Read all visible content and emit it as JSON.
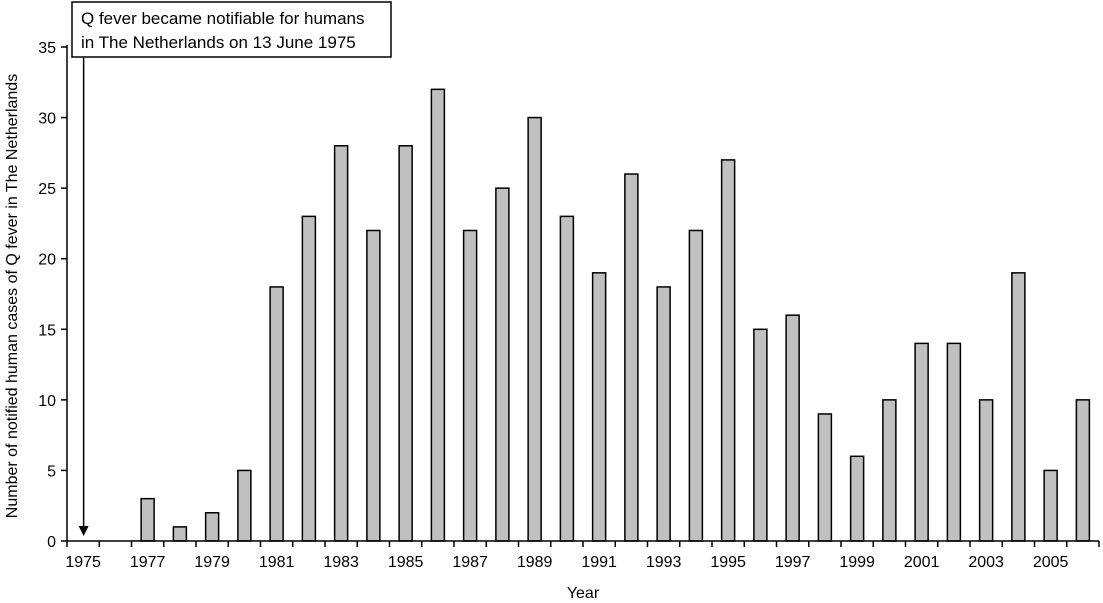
{
  "chart_data": {
    "type": "bar",
    "title": "",
    "xlabel": "Year",
    "ylabel": "Number of notified human cases of Q fever in The Netherlands",
    "ylim": [
      0,
      35
    ],
    "yticks": [
      0,
      5,
      10,
      15,
      20,
      25,
      30,
      35
    ],
    "grid": false,
    "categories": [
      "1975",
      "1976",
      "1977",
      "1978",
      "1979",
      "1980",
      "1981",
      "1982",
      "1983",
      "1984",
      "1985",
      "1986",
      "1987",
      "1988",
      "1989",
      "1990",
      "1991",
      "1992",
      "1993",
      "1994",
      "1995",
      "1996",
      "1997",
      "1998",
      "1999",
      "2000",
      "2001",
      "2002",
      "2003",
      "2004",
      "2005",
      "2006"
    ],
    "xtick_labels": [
      "1975",
      "1977",
      "1979",
      "1981",
      "1983",
      "1985",
      "1987",
      "1989",
      "1991",
      "1993",
      "1995",
      "1997",
      "1999",
      "2001",
      "2003",
      "2005"
    ],
    "values": [
      0,
      0,
      3,
      1,
      2,
      5,
      18,
      23,
      28,
      22,
      28,
      32,
      22,
      25,
      30,
      23,
      19,
      26,
      18,
      22,
      27,
      15,
      16,
      9,
      6,
      10,
      14,
      14,
      10,
      19,
      5,
      10
    ],
    "colors": {
      "bar_fill": "#c0c0c0",
      "bar_stroke": "#000000"
    },
    "annotation": {
      "lines": [
        "Q fever became notifiable for humans",
        "in The Netherlands on 13 June 1975"
      ],
      "target_category": "1975"
    }
  }
}
